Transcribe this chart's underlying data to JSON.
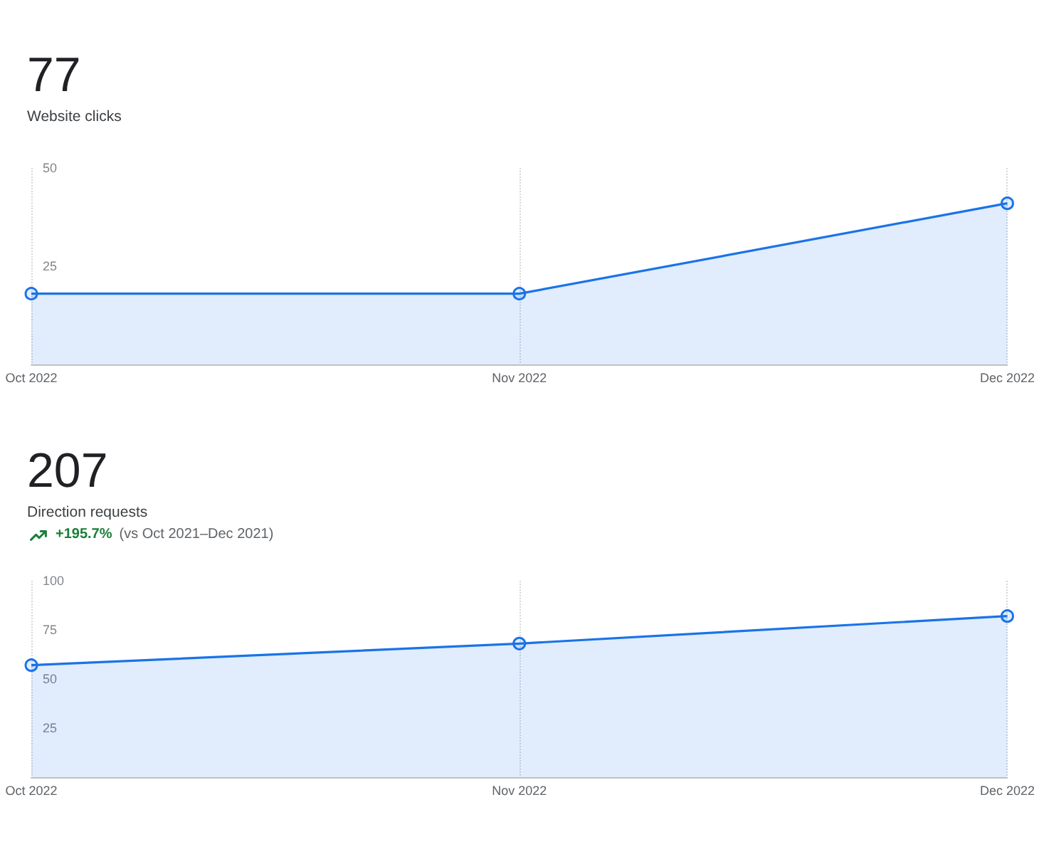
{
  "chart_data": [
    {
      "type": "area",
      "title": "77",
      "subtitle": "Website clicks",
      "categories": [
        "Oct 2022",
        "Nov 2022",
        "Dec 2022"
      ],
      "values": [
        18,
        18,
        41
      ],
      "color": "#1a73e8",
      "ylim": [
        0,
        50
      ],
      "yticks": [
        25,
        50
      ],
      "grid": "x",
      "marker": "circle",
      "line_style": "solid"
    },
    {
      "type": "area",
      "title": "207",
      "subtitle": "Direction requests",
      "annotations": [
        "+195.7%",
        "(vs Oct 2021–Dec 2021)"
      ],
      "categories": [
        "Oct 2022",
        "Nov 2022",
        "Dec 2022"
      ],
      "values": [
        57,
        68,
        82
      ],
      "color": "#1a73e8",
      "ylim": [
        0,
        100
      ],
      "yticks": [
        25,
        50,
        75,
        100
      ],
      "grid": "x",
      "marker": "circle",
      "line_style": "solid"
    }
  ]
}
